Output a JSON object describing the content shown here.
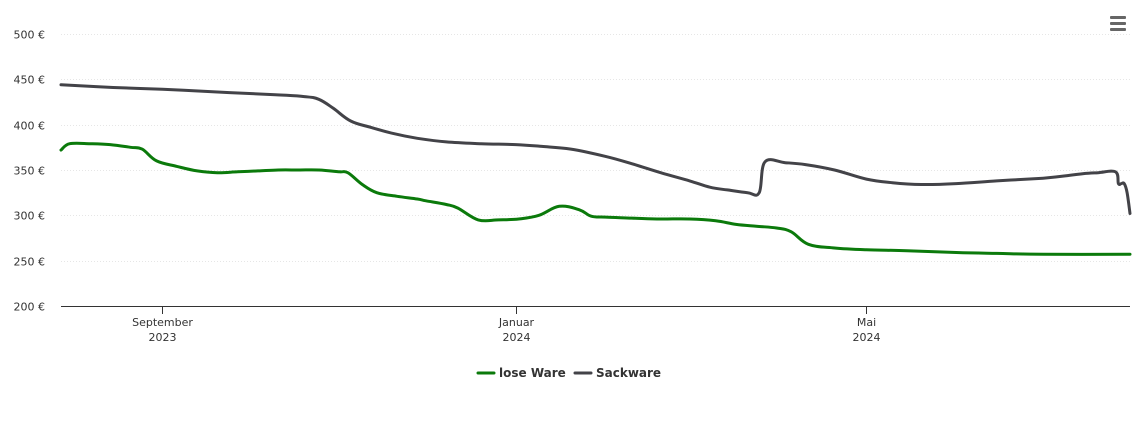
{
  "chart_data": {
    "type": "line",
    "title": "",
    "xlabel": "",
    "ylabel": "",
    "x_range": [
      "2023-07-28",
      "2024-07-31"
    ],
    "ylim": [
      200,
      500
    ],
    "y_ticks": [
      {
        "value": 200,
        "label": "200 €"
      },
      {
        "value": 250,
        "label": "250 €"
      },
      {
        "value": 300,
        "label": "300 €"
      },
      {
        "value": 350,
        "label": "350 €"
      },
      {
        "value": 400,
        "label": "400 €"
      },
      {
        "value": 450,
        "label": "450 €"
      },
      {
        "value": 500,
        "label": "500 €"
      }
    ],
    "x_ticks": [
      {
        "date": "2023-09-01",
        "month": "September",
        "year": "2023"
      },
      {
        "date": "2024-01-01",
        "month": "Januar",
        "year": "2024"
      },
      {
        "date": "2024-05-01",
        "month": "Mai",
        "year": "2024"
      }
    ],
    "grid": "horizontal",
    "legend": "bottom-center",
    "series": [
      {
        "name": "lose Ware",
        "color": "#0b7a0b",
        "points": [
          [
            "2023-07-28",
            372
          ],
          [
            "2023-07-31",
            379
          ],
          [
            "2023-08-07",
            379
          ],
          [
            "2023-08-14",
            378
          ],
          [
            "2023-08-21",
            375
          ],
          [
            "2023-08-25",
            373
          ],
          [
            "2023-08-30",
            360
          ],
          [
            "2023-09-06",
            354
          ],
          [
            "2023-09-13",
            349
          ],
          [
            "2023-09-20",
            347
          ],
          [
            "2023-09-27",
            348
          ],
          [
            "2023-10-04",
            349
          ],
          [
            "2023-10-11",
            350
          ],
          [
            "2023-10-18",
            350
          ],
          [
            "2023-10-25",
            350
          ],
          [
            "2023-11-01",
            348
          ],
          [
            "2023-11-04",
            347
          ],
          [
            "2023-11-09",
            334
          ],
          [
            "2023-11-14",
            325
          ],
          [
            "2023-11-21",
            321
          ],
          [
            "2023-11-28",
            318
          ],
          [
            "2023-12-01",
            316
          ],
          [
            "2023-12-08",
            312
          ],
          [
            "2023-12-12",
            308
          ],
          [
            "2023-12-19",
            295
          ],
          [
            "2023-12-26",
            295
          ],
          [
            "2024-01-02",
            296
          ],
          [
            "2024-01-09",
            300
          ],
          [
            "2024-01-16",
            310
          ],
          [
            "2024-01-23",
            306
          ],
          [
            "2024-01-27",
            299
          ],
          [
            "2024-02-01",
            298
          ],
          [
            "2024-02-10",
            297
          ],
          [
            "2024-02-20",
            296
          ],
          [
            "2024-03-01",
            296
          ],
          [
            "2024-03-10",
            294
          ],
          [
            "2024-03-17",
            290
          ],
          [
            "2024-03-24",
            288
          ],
          [
            "2024-03-31",
            286
          ],
          [
            "2024-04-05",
            282
          ],
          [
            "2024-04-11",
            268
          ],
          [
            "2024-04-20",
            264
          ],
          [
            "2024-05-01",
            262
          ],
          [
            "2024-05-15",
            261
          ],
          [
            "2024-06-01",
            259
          ],
          [
            "2024-06-15",
            258
          ],
          [
            "2024-07-01",
            257
          ],
          [
            "2024-07-31",
            257
          ]
        ]
      },
      {
        "name": "Sackware",
        "color": "#434348",
        "points": [
          [
            "2023-07-28",
            444
          ],
          [
            "2023-08-15",
            441
          ],
          [
            "2023-09-01",
            439
          ],
          [
            "2023-09-20",
            436
          ],
          [
            "2023-10-10",
            433
          ],
          [
            "2023-10-20",
            431
          ],
          [
            "2023-10-25",
            428
          ],
          [
            "2023-10-30",
            418
          ],
          [
            "2023-11-05",
            404
          ],
          [
            "2023-11-12",
            397
          ],
          [
            "2023-11-20",
            390
          ],
          [
            "2023-11-28",
            385
          ],
          [
            "2023-12-08",
            381
          ],
          [
            "2023-12-20",
            379
          ],
          [
            "2024-01-01",
            378
          ],
          [
            "2024-01-10",
            376
          ],
          [
            "2024-01-20",
            373
          ],
          [
            "2024-02-01",
            365
          ],
          [
            "2024-02-10",
            357
          ],
          [
            "2024-02-20",
            347
          ],
          [
            "2024-03-01",
            338
          ],
          [
            "2024-03-08",
            331
          ],
          [
            "2024-03-14",
            328
          ],
          [
            "2024-03-21",
            325
          ],
          [
            "2024-03-25",
            325
          ],
          [
            "2024-03-27",
            359
          ],
          [
            "2024-04-03",
            358
          ],
          [
            "2024-04-10",
            356
          ],
          [
            "2024-04-20",
            350
          ],
          [
            "2024-05-01",
            340
          ],
          [
            "2024-05-10",
            336
          ],
          [
            "2024-05-20",
            334
          ],
          [
            "2024-06-01",
            335
          ],
          [
            "2024-06-15",
            338
          ],
          [
            "2024-07-01",
            341
          ],
          [
            "2024-07-10",
            344
          ],
          [
            "2024-07-15",
            346
          ],
          [
            "2024-07-20",
            347
          ],
          [
            "2024-07-26",
            348
          ],
          [
            "2024-07-27",
            335
          ],
          [
            "2024-07-28",
            335
          ],
          [
            "2024-07-29",
            335
          ],
          [
            "2024-07-30",
            325
          ],
          [
            "2024-07-31",
            302
          ]
        ]
      }
    ]
  }
}
